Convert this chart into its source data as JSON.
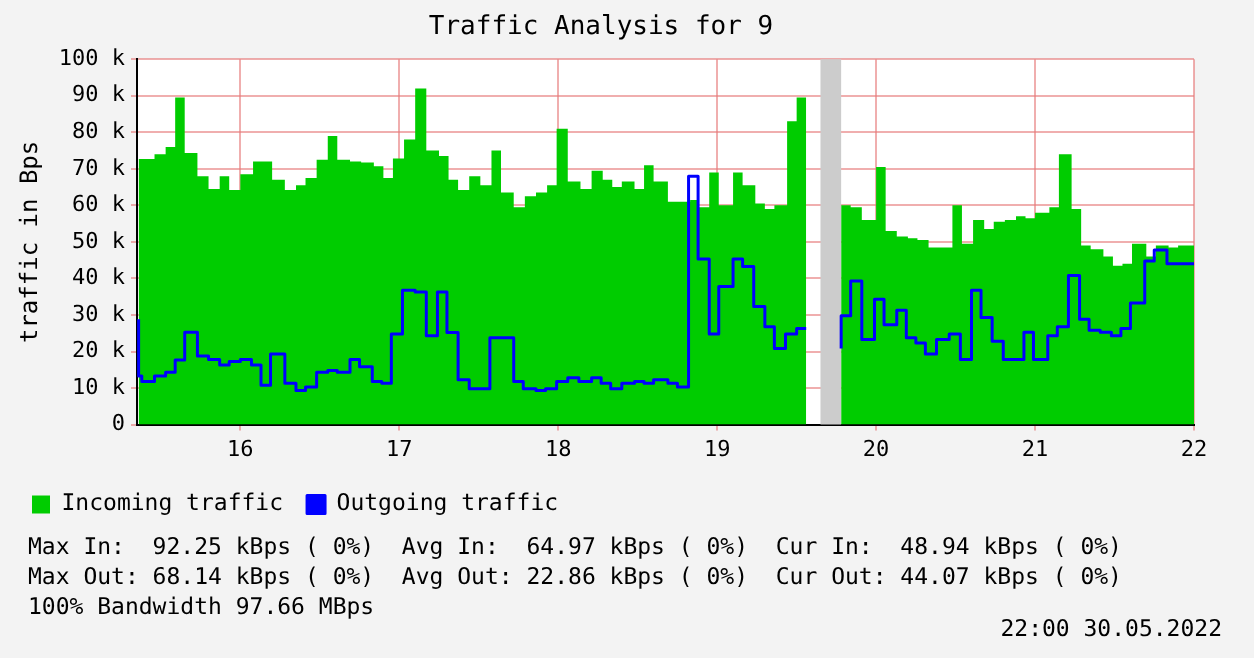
{
  "chart_data": {
    "type": "area",
    "title": "Traffic Analysis for 9",
    "ylabel": "traffic in Bps",
    "xlim": [
      15.35,
      22
    ],
    "xticks": [
      16,
      17,
      18,
      19,
      20,
      21,
      22
    ],
    "ylim": [
      0,
      100000
    ],
    "yticks": [
      0,
      {
        "value": 10000,
        "label": "10 k"
      },
      {
        "value": 20000,
        "label": "20 k"
      },
      {
        "value": 30000,
        "label": "30 k"
      },
      {
        "value": 40000,
        "label": "40 k"
      },
      {
        "value": 50000,
        "label": "50 k"
      },
      {
        "value": 60000,
        "label": "60 k"
      },
      {
        "value": 70000,
        "label": "70 k"
      },
      {
        "value": 80000,
        "label": "80 k"
      },
      {
        "value": 90000,
        "label": "90 k"
      },
      {
        "value": 100000,
        "label": "100 k"
      }
    ],
    "grid": true,
    "legend": "bottom",
    "bands": [
      {
        "axis": "x",
        "from": 19.65,
        "to": 19.78,
        "color": "#cccccc"
      }
    ],
    "series": [
      {
        "name": "Incoming traffic",
        "color": "#00cc00",
        "x": [
          15.36,
          15.46,
          15.53,
          15.59,
          15.65,
          15.73,
          15.8,
          15.87,
          15.93,
          16.0,
          16.08,
          16.2,
          16.28,
          16.35,
          16.41,
          16.48,
          16.55,
          16.61,
          16.69,
          16.76,
          16.84,
          16.9,
          16.96,
          17.03,
          17.1,
          17.17,
          17.25,
          17.31,
          17.37,
          17.44,
          17.51,
          17.58,
          17.64,
          17.72,
          17.79,
          17.86,
          17.93,
          17.99,
          18.06,
          18.14,
          18.21,
          18.28,
          18.34,
          18.4,
          18.48,
          18.54,
          18.6,
          18.69,
          18.83,
          18.88,
          18.95,
          19.01,
          19.1,
          19.16,
          19.24,
          19.3,
          19.36,
          19.44,
          19.5,
          19.56,
          19.65,
          19.78,
          19.84,
          19.91,
          20.0,
          20.06,
          20.13,
          20.2,
          20.26,
          20.33,
          20.48,
          20.54,
          20.61,
          20.68,
          20.74,
          20.81,
          20.88,
          20.94,
          21.0,
          21.09,
          21.15,
          21.23,
          21.29,
          21.35,
          21.43,
          21.49,
          21.55,
          21.61,
          21.7,
          21.76,
          21.84,
          21.9,
          22
        ],
        "values": [
          72300,
          72700,
          74000,
          76000,
          89500,
          74300,
          68000,
          64500,
          68000,
          64200,
          68500,
          72000,
          67000,
          64200,
          65500,
          67500,
          72500,
          79000,
          72500,
          72000,
          71700,
          70700,
          67500,
          72800,
          78000,
          92000,
          75000,
          73500,
          67000,
          64200,
          68000,
          65500,
          75000,
          63500,
          59500,
          62500,
          63500,
          65500,
          81000,
          66500,
          64500,
          69500,
          67000,
          65000,
          66500,
          64500,
          71000,
          66500,
          61000,
          61500,
          59500,
          69000,
          60000,
          69000,
          65500,
          60500,
          59000,
          60000,
          83000,
          89500,
          null,
          59500,
          60000,
          59500,
          56000,
          70500,
          53000,
          51500,
          51000,
          50500,
          48500,
          60000,
          49500,
          56000,
          53500,
          55500,
          56000,
          57000,
          56500,
          58000,
          59500,
          74000,
          59000,
          49000,
          48000,
          46000,
          43500,
          44000,
          49500,
          46000,
          49000,
          48500,
          49000
        ]
      },
      {
        "name": "Outgoing traffic",
        "type": "step",
        "color": "#0000ff",
        "x": [
          15.36,
          15.38,
          15.46,
          15.53,
          15.59,
          15.65,
          15.73,
          15.8,
          15.87,
          15.93,
          16.0,
          16.07,
          16.13,
          16.19,
          16.28,
          16.35,
          16.41,
          16.48,
          16.55,
          16.61,
          16.69,
          16.75,
          16.83,
          16.89,
          16.95,
          17.02,
          17.1,
          17.17,
          17.24,
          17.3,
          17.37,
          17.44,
          17.57,
          17.72,
          17.78,
          17.86,
          17.92,
          17.99,
          18.06,
          18.13,
          18.21,
          18.27,
          18.33,
          18.4,
          18.48,
          18.54,
          18.6,
          18.69,
          18.75,
          18.82,
          18.88,
          18.95,
          19.01,
          19.1,
          19.16,
          19.23,
          19.3,
          19.36,
          19.43,
          19.5,
          19.56,
          19.65,
          19.78,
          19.84,
          19.91,
          19.99,
          20.05,
          20.13,
          20.19,
          20.25,
          20.31,
          20.38,
          20.46,
          20.53,
          20.6,
          20.66,
          20.73,
          20.8,
          20.93,
          20.99,
          21.08,
          21.14,
          21.21,
          21.28,
          21.34,
          21.41,
          21.48,
          21.54,
          21.6,
          21.69,
          21.75,
          21.83,
          21.89,
          22
        ],
        "values": [
          28800,
          13300,
          11800,
          13300,
          14300,
          17700,
          25300,
          18800,
          17800,
          16300,
          17300,
          17800,
          16300,
          10800,
          19300,
          11300,
          9300,
          10300,
          14300,
          14800,
          14300,
          17800,
          15800,
          11800,
          11300,
          24800,
          36800,
          36300,
          24300,
          36300,
          25200,
          12300,
          9800,
          23800,
          11800,
          9800,
          9300,
          9800,
          11800,
          12800,
          11800,
          12800,
          11300,
          9800,
          11300,
          11800,
          11300,
          12300,
          11300,
          10300,
          68000,
          45300,
          24800,
          37800,
          45300,
          43300,
          32300,
          26800,
          20800,
          24800,
          26300,
          null,
          20800,
          29800,
          39300,
          23300,
          34300,
          27300,
          31300,
          23800,
          22300,
          19300,
          23300,
          24800,
          17800,
          36800,
          29300,
          22800,
          17800,
          25300,
          17800,
          24300,
          26800,
          40800,
          28800,
          25800,
          25300,
          24300,
          26300,
          33300,
          44800,
          47800,
          44000,
          44000
        ]
      }
    ],
    "annotations": [
      "Max In:  92.25 kBps ( 0%)  Avg In:  64.97 kBps ( 0%)  Cur In:  48.94 kBps ( 0%)",
      "Max Out: 68.14 kBps ( 0%)  Avg Out: 22.86 kBps ( 0%)  Cur Out: 44.07 kBps ( 0%)",
      "100% Bandwidth 97.66 MBps",
      "22:00 30.05.2022"
    ]
  }
}
